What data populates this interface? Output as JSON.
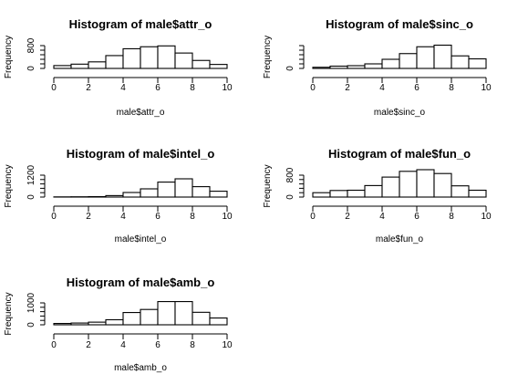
{
  "chart_data": [
    {
      "type": "bar",
      "title": "Histogram of male$attr_o",
      "xlabel": "male$attr_o",
      "ylabel": "Frequency",
      "bins": [
        [
          0,
          1
        ],
        [
          1,
          2
        ],
        [
          2,
          3
        ],
        [
          3,
          4
        ],
        [
          4,
          5
        ],
        [
          5,
          6
        ],
        [
          6,
          7
        ],
        [
          7,
          8
        ],
        [
          8,
          9
        ],
        [
          9,
          10
        ]
      ],
      "values": [
        100,
        150,
        230,
        450,
        690,
        760,
        790,
        540,
        280,
        140
      ],
      "xlim": [
        0,
        11
      ],
      "x_ticks": [
        "0",
        "2",
        "4",
        "6",
        "8",
        "10"
      ],
      "ylim": [
        0,
        800
      ],
      "y_ticks": [
        "0",
        "800"
      ],
      "grid": false
    },
    {
      "type": "bar",
      "title": "Histogram of male$sinc_o",
      "xlabel": "male$sinc_o",
      "ylabel": "Frequency",
      "bins": [
        [
          0,
          1
        ],
        [
          1,
          2
        ],
        [
          2,
          3
        ],
        [
          3,
          4
        ],
        [
          4,
          5
        ],
        [
          5,
          6
        ],
        [
          6,
          7
        ],
        [
          7,
          8
        ],
        [
          8,
          9
        ],
        [
          9,
          10
        ]
      ],
      "values": [
        50,
        100,
        120,
        200,
        400,
        650,
        950,
        1020,
        550,
        420
      ],
      "xlim": [
        0,
        10
      ],
      "x_ticks": [
        "0",
        "2",
        "4",
        "6",
        "8",
        "10"
      ],
      "ylim": [
        0,
        1000
      ],
      "y_ticks": [
        "0"
      ],
      "grid": false
    },
    {
      "type": "bar",
      "title": "Histogram of male$intel_o",
      "xlabel": "male$intel_o",
      "ylabel": "Frequency",
      "bins": [
        [
          0,
          1
        ],
        [
          1,
          2
        ],
        [
          2,
          3
        ],
        [
          3,
          4
        ],
        [
          4,
          5
        ],
        [
          5,
          6
        ],
        [
          6,
          7
        ],
        [
          7,
          8
        ],
        [
          8,
          9
        ],
        [
          9,
          10
        ]
      ],
      "values": [
        10,
        15,
        25,
        80,
        250,
        450,
        820,
        1000,
        570,
        320
      ],
      "xlim": [
        0,
        10
      ],
      "x_ticks": [
        "0",
        "2",
        "4",
        "6",
        "8",
        "10"
      ],
      "ylim": [
        0,
        1200
      ],
      "y_ticks": [
        "0",
        "1200"
      ],
      "grid": false
    },
    {
      "type": "bar",
      "title": "Histogram of male$fun_o",
      "xlabel": "male$fun_o",
      "ylabel": "Frequency",
      "bins": [
        [
          0,
          1
        ],
        [
          1,
          2
        ],
        [
          2,
          3
        ],
        [
          3,
          4
        ],
        [
          4,
          5
        ],
        [
          5,
          6
        ],
        [
          6,
          7
        ],
        [
          7,
          8
        ],
        [
          8,
          9
        ],
        [
          9,
          10
        ]
      ],
      "values": [
        160,
        240,
        250,
        420,
        730,
        940,
        1000,
        860,
        410,
        250
      ],
      "xlim": [
        0,
        10
      ],
      "x_ticks": [
        "0",
        "2",
        "4",
        "6",
        "8",
        "10"
      ],
      "ylim": [
        0,
        800
      ],
      "y_ticks": [
        "0",
        "800"
      ],
      "grid": false
    },
    {
      "type": "bar",
      "title": "Histogram of male$amb_o",
      "xlabel": "male$amb_o",
      "ylabel": "Frequency",
      "bins": [
        [
          0,
          1
        ],
        [
          1,
          2
        ],
        [
          2,
          3
        ],
        [
          3,
          4
        ],
        [
          4,
          5
        ],
        [
          5,
          6
        ],
        [
          6,
          7
        ],
        [
          7,
          8
        ],
        [
          8,
          9
        ],
        [
          9,
          10
        ]
      ],
      "values": [
        60,
        80,
        120,
        230,
        560,
        700,
        1060,
        1060,
        570,
        310
      ],
      "xlim": [
        0,
        10
      ],
      "x_ticks": [
        "0",
        "2",
        "4",
        "6",
        "8",
        "10"
      ],
      "ylim": [
        0,
        1000
      ],
      "y_ticks": [
        "0",
        "1000"
      ],
      "grid": false
    }
  ]
}
